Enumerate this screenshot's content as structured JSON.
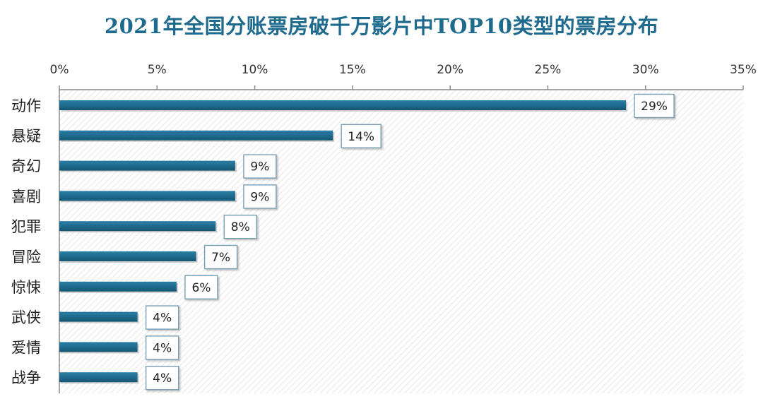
{
  "chart_data": {
    "type": "bar",
    "orientation": "horizontal",
    "title": "2021年全国分账票房破千万影片中TOP10类型的票房分布",
    "categories": [
      "动作",
      "悬疑",
      "奇幻",
      "喜剧",
      "犯罪",
      "冒险",
      "惊悚",
      "武侠",
      "爱情",
      "战争"
    ],
    "values": [
      29,
      14,
      9,
      9,
      8,
      7,
      6,
      4,
      4,
      4
    ],
    "data_labels": [
      "29%",
      "14%",
      "9%",
      "9%",
      "8%",
      "7%",
      "6%",
      "4%",
      "4%",
      "4%"
    ],
    "xlim": [
      0,
      35
    ],
    "x_ticks": [
      0,
      5,
      10,
      15,
      20,
      25,
      30,
      35
    ],
    "x_tick_labels": [
      "0%",
      "5%",
      "10%",
      "15%",
      "20%",
      "25%",
      "30%",
      "35%"
    ],
    "x_axis_position": "top",
    "grid": false,
    "bar_color": "#1f6b8e",
    "title_color": "#1f6b8e"
  }
}
